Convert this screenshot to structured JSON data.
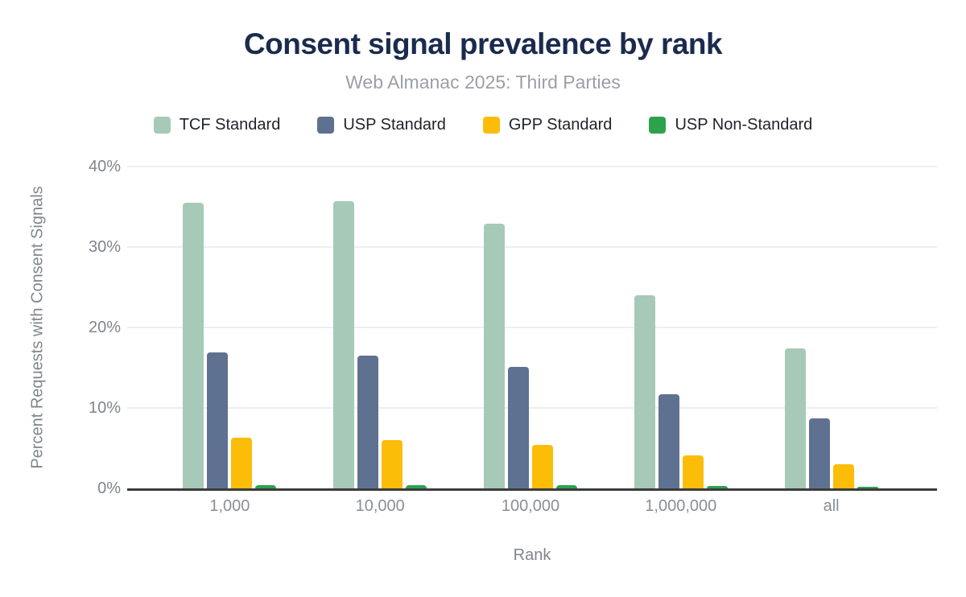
{
  "header": {
    "title": "Consent signal prevalence by rank",
    "subtitle": "Web Almanac 2025: Third Parties"
  },
  "colors": {
    "title_text": "#1b2b4d",
    "subtitle_text": "#9aa0a6",
    "axis_text": "#80868b",
    "axis_line": "#3c3c3c",
    "gridline": "#eeeeee",
    "tcf_standard": "#a6cab7",
    "usp_standard": "#5f7190",
    "gpp_standard": "#fbbd08",
    "usp_non_standard": "#2ca24d"
  },
  "chart_data": {
    "type": "bar",
    "title": "Consent signal prevalence by rank",
    "subtitle": "Web Almanac 2025: Third Parties",
    "xlabel": "Rank",
    "ylabel": "Percent Requests with Consent Signals",
    "categories": [
      "1,000",
      "10,000",
      "100,000",
      "1,000,000",
      "all"
    ],
    "series": [
      {
        "name": "TCF Standard",
        "color": "#a6cab7",
        "values": [
          35.5,
          35.7,
          32.9,
          24.0,
          17.4
        ]
      },
      {
        "name": "USP Standard",
        "color": "#5f7190",
        "values": [
          16.9,
          16.5,
          15.1,
          11.7,
          8.7
        ]
      },
      {
        "name": "GPP Standard",
        "color": "#fbbd08",
        "values": [
          6.3,
          6.0,
          5.4,
          4.1,
          3.0
        ]
      },
      {
        "name": "USP Non-Standard",
        "color": "#2ca24d",
        "values": [
          0.4,
          0.4,
          0.4,
          0.3,
          0.2
        ]
      }
    ],
    "ylim": [
      0,
      40
    ],
    "yticks": [
      {
        "value": 0,
        "label": "0%"
      },
      {
        "value": 10,
        "label": "10%"
      },
      {
        "value": 20,
        "label": "20%"
      },
      {
        "value": 30,
        "label": "30%"
      },
      {
        "value": 40,
        "label": "40%"
      }
    ],
    "grid": true,
    "legend_position": "top"
  }
}
